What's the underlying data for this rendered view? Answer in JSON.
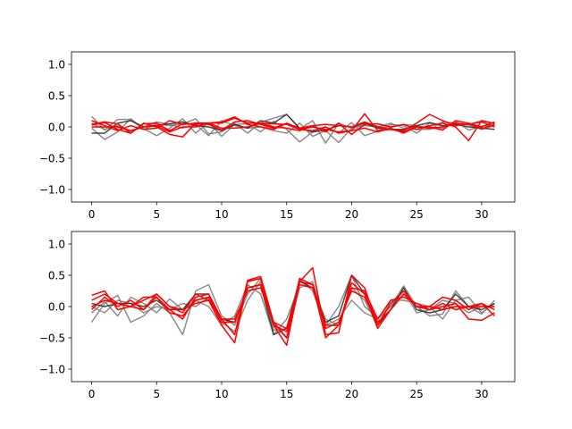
{
  "chart_data": [
    {
      "type": "line",
      "x": [
        0,
        1,
        2,
        3,
        4,
        5,
        6,
        7,
        8,
        9,
        10,
        11,
        12,
        13,
        14,
        15,
        16,
        17,
        18,
        19,
        20,
        21,
        22,
        23,
        24,
        25,
        26,
        27,
        28,
        29,
        30,
        31
      ],
      "xlim": [
        -1.55,
        32.55
      ],
      "ylim": [
        -1.2,
        1.2
      ],
      "xticks": [
        0,
        5,
        10,
        15,
        20,
        25,
        30
      ],
      "yticks": [
        -1.0,
        -0.5,
        0.0,
        0.5,
        1.0
      ],
      "xticklabels": [
        "0",
        "5",
        "10",
        "15",
        "20",
        "25",
        "30"
      ],
      "yticklabels": [
        "−1.0",
        "−0.5",
        "0.0",
        "0.5",
        "1.0"
      ],
      "grid": false,
      "colors": {
        "gray": "#808080",
        "dark": "#333333",
        "red": "#ff0000"
      },
      "series": [
        {
          "color": "gray",
          "values": [
            0.17,
            -0.05,
            0.12,
            0.12,
            -0.04,
            0.05,
            0.02,
            0.05,
            0.13,
            -0.11,
            -0.08,
            0.06,
            -0.1,
            0.07,
            0.14,
            0.2,
            -0.03,
            0.1,
            -0.26,
            0.06,
            -0.02,
            0.04,
            0.01,
            -0.01,
            0.04,
            0.02,
            -0.03,
            -0.02,
            0.09,
            -0.05,
            0.01,
            0.03
          ]
        },
        {
          "color": "gray",
          "values": [
            -0.02,
            -0.2,
            -0.08,
            0.13,
            -0.03,
            -0.14,
            -0.02,
            0.13,
            -0.1,
            0.07,
            -0.15,
            0.04,
            0.05,
            -0.08,
            0.09,
            -0.04,
            -0.24,
            -0.08,
            0.0,
            -0.1,
            0.07,
            -0.14,
            -0.07,
            0.04,
            0.02,
            -0.1,
            0.06,
            0.02,
            0.04,
            0.04,
            0.1,
            0.06
          ]
        },
        {
          "color": "gray",
          "values": [
            0.06,
            -0.04,
            0.02,
            -0.07,
            0.0,
            0.08,
            0.04,
            -0.02,
            0.04,
            -0.14,
            0.1,
            0.02,
            -0.02,
            0.0,
            -0.06,
            -0.1,
            0.06,
            -0.15,
            -0.06,
            -0.25,
            -0.02,
            0.02,
            0.0,
            0.06,
            -0.02,
            -0.04,
            -0.04,
            0.08,
            0.06,
            0.03,
            -0.04,
            0.02
          ]
        },
        {
          "color": "dark",
          "values": [
            -0.1,
            -0.1,
            0.06,
            0.1,
            0.0,
            0.02,
            0.05,
            0.08,
            0.02,
            0.0,
            -0.06,
            0.04,
            -0.02,
            0.1,
            0.06,
            0.2,
            -0.02,
            -0.08,
            -0.05,
            0.02,
            0.0,
            0.06,
            -0.02,
            -0.04,
            -0.04,
            0.02,
            0.07,
            0.02,
            0.04,
            0.0,
            -0.02,
            -0.04
          ]
        },
        {
          "color": "red",
          "values": [
            0.04,
            0.08,
            0.05,
            -0.1,
            0.05,
            0.06,
            -0.06,
            0.05,
            0.04,
            0.06,
            0.06,
            0.14,
            0.06,
            0.06,
            0.05,
            0.04,
            -0.04,
            -0.06,
            0.0,
            -0.1,
            -0.06,
            0.21,
            -0.06,
            -0.04,
            -0.06,
            0.06,
            0.2,
            0.1,
            0.02,
            0.05,
            -0.03,
            0.04
          ]
        },
        {
          "color": "red",
          "values": [
            0.1,
            0.02,
            -0.06,
            0.02,
            -0.04,
            -0.02,
            0.1,
            0.04,
            0.06,
            0.06,
            0.08,
            0.16,
            0.04,
            0.0,
            -0.04,
            0.06,
            -0.02,
            0.02,
            -0.08,
            0.06,
            -0.12,
            0.04,
            0.05,
            0.0,
            0.04,
            -0.04,
            0.02,
            0.06,
            0.0,
            -0.22,
            0.1,
            0.05
          ]
        },
        {
          "color": "red",
          "values": [
            0.03,
            0.07,
            -0.04,
            -0.1,
            0.06,
            0.0,
            -0.12,
            -0.16,
            0.06,
            0.04,
            -0.05,
            0.08,
            0.1,
            0.04,
            -0.02,
            0.06,
            -0.04,
            0.0,
            -0.04,
            -0.08,
            -0.06,
            -0.02,
            -0.08,
            -0.02,
            -0.1,
            0.0,
            0.0,
            -0.05,
            0.1,
            0.06,
            0.0,
            0.08
          ]
        },
        {
          "color": "red",
          "values": [
            0.0,
            0.0,
            0.0,
            -0.06,
            0.0,
            0.02,
            -0.08,
            0.0,
            0.0,
            0.06,
            -0.02,
            -0.02,
            0.0,
            0.06,
            0.0,
            -0.02,
            -0.06,
            0.02,
            0.04,
            0.02,
            0.0,
            0.08,
            0.0,
            -0.04,
            -0.08,
            0.0,
            -0.02,
            0.0,
            0.06,
            0.04,
            0.08,
            0.0
          ]
        }
      ]
    },
    {
      "type": "line",
      "x": [
        0,
        1,
        2,
        3,
        4,
        5,
        6,
        7,
        8,
        9,
        10,
        11,
        12,
        13,
        14,
        15,
        16,
        17,
        18,
        19,
        20,
        21,
        22,
        23,
        24,
        25,
        26,
        27,
        28,
        29,
        30,
        31
      ],
      "xlim": [
        -1.55,
        32.55
      ],
      "ylim": [
        -1.2,
        1.2
      ],
      "xticks": [
        0,
        5,
        10,
        15,
        20,
        25,
        30
      ],
      "yticks": [
        -1.0,
        -0.5,
        0.0,
        0.5,
        1.0
      ],
      "xticklabels": [
        "0",
        "5",
        "10",
        "15",
        "20",
        "25",
        "30"
      ],
      "yticklabels": [
        "−1.0",
        "−0.5",
        "0.0",
        "0.5",
        "1.0"
      ],
      "grid": false,
      "colors": {
        "gray": "#808080",
        "dark": "#333333",
        "red": "#ff0000"
      },
      "series": [
        {
          "color": "gray",
          "values": [
            -0.25,
            0.05,
            0.18,
            -0.25,
            -0.15,
            0.05,
            -0.1,
            -0.45,
            0.25,
            0.35,
            -0.15,
            -0.3,
            0.2,
            0.45,
            -0.38,
            -0.35,
            0.45,
            0.25,
            -0.3,
            0.0,
            0.5,
            0.0,
            -0.18,
            0.0,
            0.33,
            0.0,
            -0.15,
            -0.12,
            0.25,
            0.0,
            -0.12,
            0.1
          ]
        },
        {
          "color": "gray",
          "values": [
            -0.1,
            0.08,
            -0.15,
            0.15,
            0.05,
            -0.1,
            0.12,
            -0.05,
            0.1,
            0.0,
            -0.3,
            -0.15,
            0.35,
            0.2,
            -0.45,
            -0.2,
            0.35,
            0.3,
            -0.2,
            -0.3,
            0.3,
            0.1,
            -0.3,
            0.1,
            0.1,
            0.05,
            0.0,
            -0.2,
            0.1,
            0.15,
            -0.1,
            0.05
          ]
        },
        {
          "color": "gray",
          "values": [
            0.0,
            -0.1,
            0.1,
            0.05,
            -0.1,
            0.0,
            -0.05,
            0.05,
            0.0,
            0.15,
            -0.25,
            -0.4,
            0.1,
            0.4,
            -0.3,
            -0.5,
            0.3,
            0.4,
            -0.3,
            -0.2,
            0.1,
            -0.1,
            -0.2,
            0.0,
            0.25,
            -0.1,
            -0.05,
            0.1,
            0.05,
            -0.1,
            0.0,
            0.0
          ]
        },
        {
          "color": "dark",
          "values": [
            0.05,
            0.0,
            0.05,
            0.05,
            0.0,
            0.1,
            -0.05,
            -0.05,
            0.2,
            0.2,
            -0.2,
            -0.25,
            0.3,
            0.35,
            -0.45,
            -0.35,
            0.4,
            0.3,
            -0.25,
            -0.15,
            0.5,
            0.2,
            -0.3,
            -0.05,
            0.3,
            -0.05,
            -0.1,
            -0.05,
            0.2,
            0.0,
            -0.05,
            0.05
          ]
        },
        {
          "color": "red",
          "values": [
            0.18,
            0.25,
            -0.05,
            0.0,
            -0.05,
            0.2,
            0.0,
            -0.1,
            0.2,
            0.1,
            -0.3,
            -0.58,
            0.4,
            0.45,
            -0.3,
            -0.62,
            0.4,
            0.62,
            -0.45,
            -0.42,
            0.5,
            0.3,
            -0.3,
            0.05,
            0.25,
            0.0,
            -0.05,
            0.0,
            0.05,
            -0.2,
            -0.22,
            -0.1
          ]
        },
        {
          "color": "red",
          "values": [
            0.1,
            0.2,
            0.05,
            0.0,
            0.15,
            0.15,
            -0.05,
            -0.2,
            0.15,
            0.2,
            -0.2,
            -0.45,
            0.42,
            0.48,
            -0.25,
            -0.5,
            0.45,
            0.35,
            -0.5,
            -0.3,
            0.38,
            0.2,
            -0.35,
            -0.05,
            0.2,
            0.0,
            0.0,
            0.15,
            0.1,
            -0.05,
            0.05,
            -0.15
          ]
        },
        {
          "color": "red",
          "values": [
            -0.05,
            0.15,
            0.0,
            0.1,
            -0.05,
            0.15,
            -0.1,
            -0.15,
            0.1,
            0.15,
            -0.25,
            -0.25,
            0.3,
            0.35,
            -0.3,
            -0.4,
            0.4,
            0.35,
            -0.3,
            -0.3,
            0.3,
            0.25,
            -0.2,
            0.1,
            0.15,
            0.05,
            -0.05,
            0.05,
            -0.05,
            0.0,
            0.05,
            -0.05
          ]
        },
        {
          "color": "red",
          "values": [
            0.0,
            0.1,
            0.05,
            0.0,
            0.1,
            0.2,
            0.0,
            -0.05,
            0.05,
            0.1,
            -0.2,
            -0.2,
            0.25,
            0.3,
            -0.25,
            -0.35,
            0.35,
            0.3,
            -0.35,
            -0.25,
            0.25,
            0.15,
            -0.25,
            -0.05,
            0.2,
            0.0,
            0.0,
            -0.05,
            0.0,
            0.0,
            0.0,
            0.0
          ]
        }
      ]
    }
  ]
}
